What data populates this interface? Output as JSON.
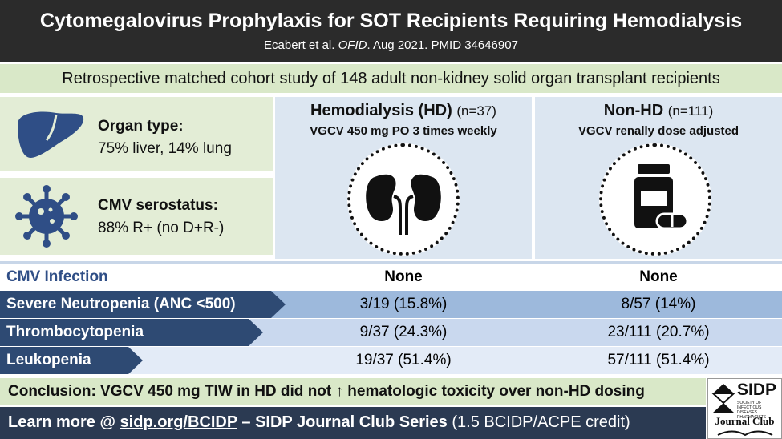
{
  "header": {
    "title": "Cytomegalovirus Prophylaxis for SOT Recipients Requiring Hemodialysis",
    "citation_authors": "Ecabert et al.",
    "citation_journal": "OFID",
    "citation_rest": ". Aug 2021. PMID 34646907"
  },
  "study_design": "Retrospective matched cohort study of 148 adult non-kidney solid organ transplant recipients",
  "population": {
    "organ": {
      "heading": "Organ type:",
      "value": "75% liver, 14% lung",
      "icon": "liver-icon"
    },
    "serostatus": {
      "heading": "CMV serostatus:",
      "value": "88% R+ (no D+R-)",
      "icon": "virus-icon"
    }
  },
  "arms": [
    {
      "name": "Hemodialysis (HD)",
      "n": "(n=37)",
      "regimen": "VGCV 450 mg PO 3 times weekly",
      "icon": "kidney-icon"
    },
    {
      "name": "Non-HD",
      "n": "(n=111)",
      "regimen": "VGCV renally dose adjusted",
      "icon": "pill-bottle-icon"
    }
  ],
  "outcomes": [
    {
      "label": "CMV Infection",
      "hd": "None",
      "nonhd": "None"
    },
    {
      "label": "Severe Neutropenia (ANC <500)",
      "hd": "3/19 (15.8%)",
      "nonhd": "8/57 (14%)"
    },
    {
      "label": "Thrombocytopenia",
      "hd": "9/37 (24.3%)",
      "nonhd": "23/111 (20.7%)"
    },
    {
      "label": "Leukopenia",
      "hd": "19/37 (51.4%)",
      "nonhd": "57/111 (51.4%)"
    }
  ],
  "conclusion": {
    "label": "Conclusion",
    "text": ": VGCV 450 mg TIW in HD did not ↑ hematologic toxicity over non-HD dosing"
  },
  "footer": {
    "prefix": "Learn more @ ",
    "link": "sidp.org/BCIDP",
    "middle": " – SIDP Journal Club Series",
    "suffix": " (1.5 BCIDP/ACPE credit)"
  },
  "logo": {
    "name": "SIDP",
    "tagline": "SOCIETY OF INFECTIOUS DISEASES PHARMACISTS",
    "subtitle": "Journal Club"
  },
  "colors": {
    "header_bg": "#2b2b2b",
    "green_band": "#d9e8c8",
    "left_panel": "#e3edd6",
    "arm_bg": "#dce6f1",
    "label_dark_blue": "#2e4a73",
    "footer_bg": "#2b3a52"
  }
}
